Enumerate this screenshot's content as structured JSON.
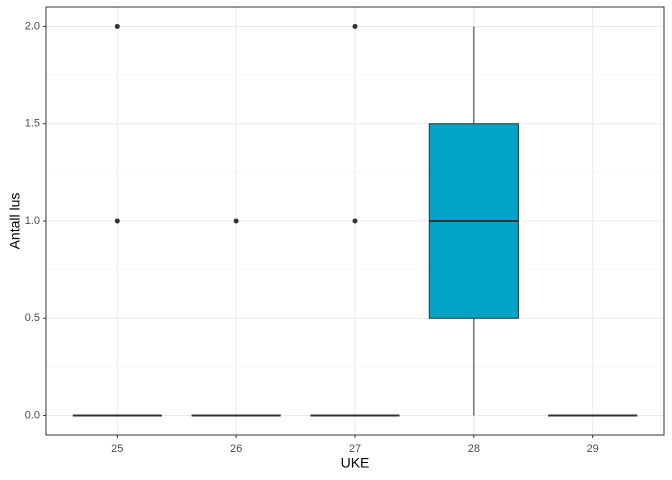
{
  "chart_data": {
    "type": "boxplot",
    "x_label": "UKE",
    "y_label": "Antall lus",
    "categories": [
      "25",
      "26",
      "27",
      "28",
      "29"
    ],
    "boxes": [
      {
        "min": 0,
        "q1": 0,
        "median": 0,
        "q3": 0,
        "max": 0,
        "outliers": [
          1,
          2
        ]
      },
      {
        "min": 0,
        "q1": 0,
        "median": 0,
        "q3": 0,
        "max": 0,
        "outliers": [
          1
        ]
      },
      {
        "min": 0,
        "q1": 0,
        "median": 0,
        "q3": 0,
        "max": 0,
        "outliers": [
          1,
          2
        ]
      },
      {
        "min": 0,
        "q1": 0.5,
        "median": 1,
        "q3": 1.5,
        "max": 2,
        "outliers": []
      },
      {
        "min": 0,
        "q1": 0,
        "median": 0,
        "q3": 0,
        "max": 0,
        "outliers": []
      }
    ],
    "color": "#00a4c4",
    "ylim": [
      -0.1,
      2.1
    ],
    "yticks": [
      {
        "value": 0,
        "label": "0.0"
      },
      {
        "value": 0.5,
        "label": "0.5"
      },
      {
        "value": 1,
        "label": "1.0"
      },
      {
        "value": 1.5,
        "label": "1.5"
      },
      {
        "value": 2,
        "label": "2.0"
      }
    ],
    "grid": true
  }
}
